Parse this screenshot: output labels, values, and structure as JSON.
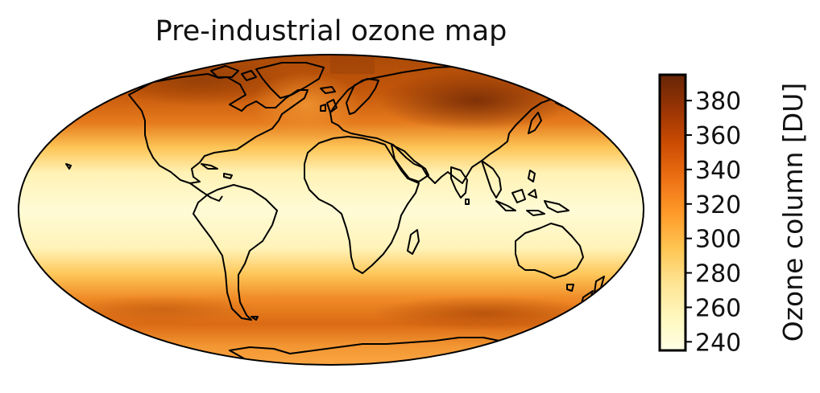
{
  "map": {
    "title": "Pre-industrial ozone map",
    "projection": "Mollweide",
    "variable": "Ozone column",
    "colormap": "YlOrBr"
  },
  "colorbar": {
    "label": "Ozone column [DU]",
    "min": 235,
    "max": 395,
    "ticks": [
      "240",
      "260",
      "280",
      "300",
      "320",
      "340",
      "360",
      "380"
    ],
    "colors": [
      "#ffffe5",
      "#fff7bc",
      "#fee391",
      "#fec44f",
      "#fe9929",
      "#ec7014",
      "#cc4c02",
      "#993404",
      "#662506"
    ]
  },
  "colors": {
    "coastline": "#000000",
    "map_border": "#000000"
  }
}
